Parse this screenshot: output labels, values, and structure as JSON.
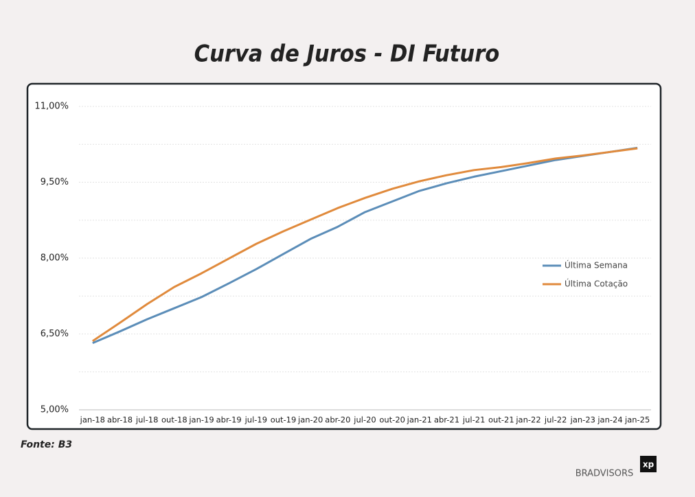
{
  "chart_data": {
    "type": "line",
    "title": "Curva de Juros - DI Futuro",
    "categories": [
      "jan-18",
      "abr-18",
      "jul-18",
      "out-18",
      "jan-19",
      "abr-19",
      "jul-19",
      "out-19",
      "jan-20",
      "abr-20",
      "jul-20",
      "out-20",
      "jan-21",
      "abr-21",
      "jul-21",
      "out-21",
      "jan-22",
      "jul-22",
      "jan-23",
      "jan-24",
      "jan-25"
    ],
    "series": [
      {
        "name": "Última Semana",
        "color": "#5b8db8",
        "values": [
          6.32,
          6.55,
          6.79,
          7.01,
          7.23,
          7.5,
          7.78,
          8.08,
          8.38,
          8.62,
          8.91,
          9.12,
          9.33,
          9.48,
          9.61,
          9.72,
          9.83,
          9.94,
          10.02,
          10.1,
          10.18
        ]
      },
      {
        "name": "Última Cotação",
        "color": "#e08a3c",
        "values": [
          6.36,
          6.72,
          7.09,
          7.43,
          7.7,
          7.99,
          8.28,
          8.53,
          8.76,
          8.99,
          9.19,
          9.37,
          9.52,
          9.64,
          9.74,
          9.8,
          9.88,
          9.97,
          10.03,
          10.1,
          10.17
        ]
      }
    ],
    "ylim": [
      5,
      11
    ],
    "yticks": [
      {
        "value": 5,
        "label": "5,00%"
      },
      {
        "value": 6.5,
        "label": "6,50%"
      },
      {
        "value": 8,
        "label": "8,00%"
      },
      {
        "value": 9.5,
        "label": "9,50%"
      },
      {
        "value": 11,
        "label": "11,00%"
      }
    ],
    "minor_yticks": [
      5.75,
      7.25,
      8.75,
      10.25
    ],
    "grid": true,
    "legend_position": "right",
    "source": "Fonte: B3"
  },
  "branding": {
    "bradvisors": "BRADVISORS",
    "xp": "xp"
  }
}
